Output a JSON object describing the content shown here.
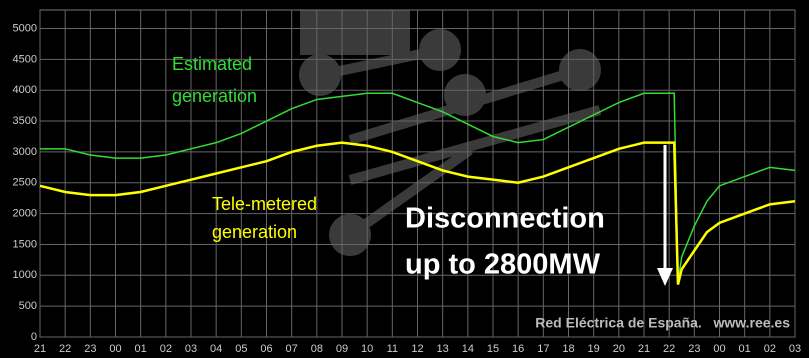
{
  "chart_data": {
    "type": "line",
    "x": [
      0,
      1,
      2,
      3,
      4,
      5,
      6,
      7,
      8,
      9,
      10,
      11,
      12,
      13,
      14,
      15,
      16,
      17,
      18,
      19,
      20,
      21,
      22,
      23,
      24,
      25,
      25.2,
      25.35,
      25.5,
      26,
      26.5,
      27,
      28,
      29,
      30
    ],
    "series": [
      {
        "name": "Estimated generation",
        "color": "#33dd33",
        "values": [
          3050,
          3050,
          2950,
          2900,
          2900,
          2950,
          3050,
          3150,
          3300,
          3500,
          3700,
          3850,
          3900,
          3950,
          3950,
          3800,
          3650,
          3450,
          3250,
          3150,
          3200,
          3400,
          3600,
          3800,
          3950,
          3950,
          3950,
          900,
          1300,
          1800,
          2200,
          2450,
          2600,
          2750,
          2700
        ]
      },
      {
        "name": "Tele-metered generation",
        "color": "#ffff00",
        "values": [
          2450,
          2350,
          2300,
          2300,
          2350,
          2450,
          2550,
          2650,
          2750,
          2850,
          3000,
          3100,
          3150,
          3100,
          3000,
          2850,
          2700,
          2600,
          2550,
          2500,
          2600,
          2750,
          2900,
          3050,
          3150,
          3150,
          3150,
          850,
          1100,
          1400,
          1700,
          1850,
          2000,
          2150,
          2200
        ]
      }
    ],
    "xlim": [
      0,
      30
    ],
    "xticks": [
      {
        "value": 0,
        "label": "21"
      },
      {
        "value": 1,
        "label": "22"
      },
      {
        "value": 2,
        "label": "23"
      },
      {
        "value": 3,
        "label": "00"
      },
      {
        "value": 4,
        "label": "01"
      },
      {
        "value": 5,
        "label": "02"
      },
      {
        "value": 6,
        "label": "03"
      },
      {
        "value": 7,
        "label": "04"
      },
      {
        "value": 8,
        "label": "05"
      },
      {
        "value": 9,
        "label": "06"
      },
      {
        "value": 10,
        "label": "07"
      },
      {
        "value": 11,
        "label": "08"
      },
      {
        "value": 12,
        "label": "09"
      },
      {
        "value": 13,
        "label": "10"
      },
      {
        "value": 14,
        "label": "11"
      },
      {
        "value": 15,
        "label": "12"
      },
      {
        "value": 16,
        "label": "13"
      },
      {
        "value": 17,
        "label": "14"
      },
      {
        "value": 18,
        "label": "15"
      },
      {
        "value": 19,
        "label": "16"
      },
      {
        "value": 20,
        "label": "17"
      },
      {
        "value": 21,
        "label": "18"
      },
      {
        "value": 22,
        "label": "19"
      },
      {
        "value": 23,
        "label": "20"
      },
      {
        "value": 24,
        "label": "21"
      },
      {
        "value": 25,
        "label": "22"
      },
      {
        "value": 26,
        "label": "23"
      },
      {
        "value": 27,
        "label": "00"
      },
      {
        "value": 28,
        "label": "01"
      },
      {
        "value": 29,
        "label": "02"
      },
      {
        "value": 30,
        "label": "03"
      }
    ],
    "ylim": [
      0,
      5300
    ],
    "yticks": [
      0,
      500,
      1000,
      1500,
      2000,
      2500,
      3000,
      3500,
      4000,
      4500,
      5000
    ],
    "grid": true,
    "annotations": [
      {
        "lines": [
          "Estimated",
          "generation"
        ]
      },
      {
        "lines": [
          "Tele-metered",
          "generation"
        ]
      },
      {
        "lines": [
          "Disconnection",
          "up to 2800MW"
        ]
      },
      {
        "lines": [
          "Red Eléctrica de España.   www.ree.es"
        ]
      }
    ]
  }
}
